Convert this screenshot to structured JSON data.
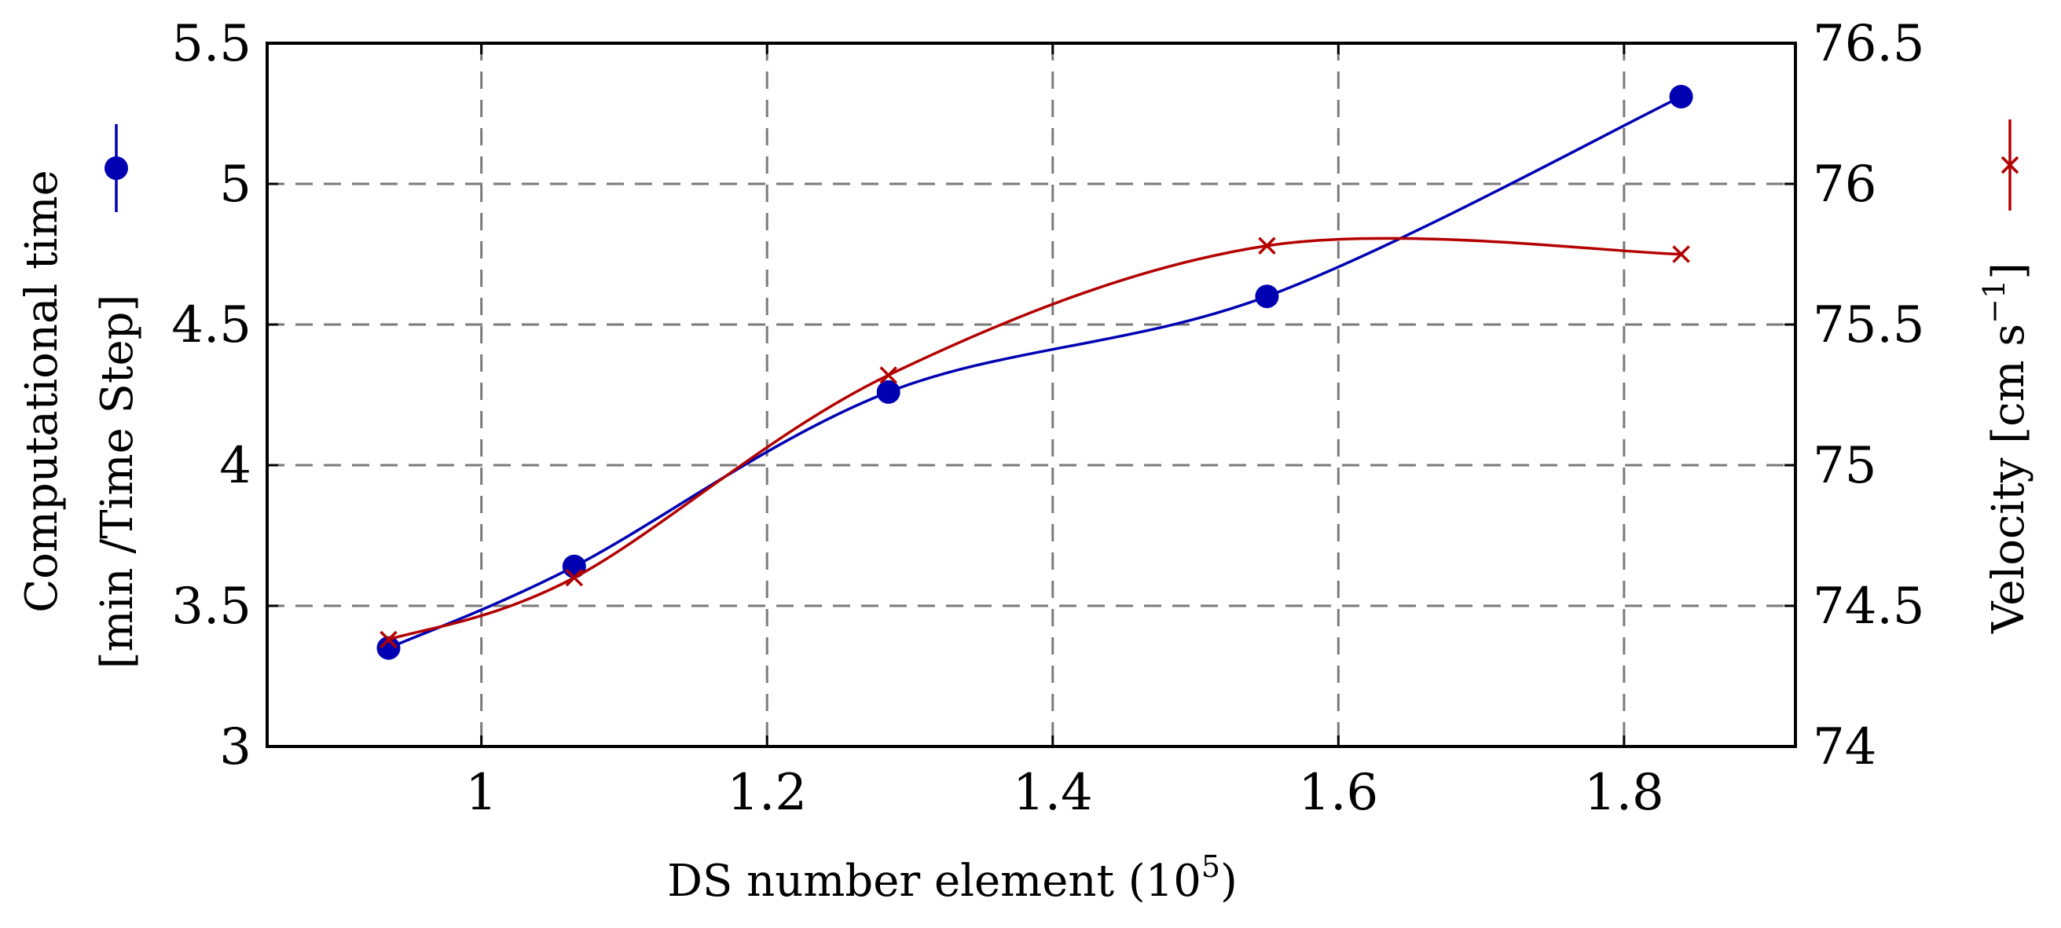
{
  "chart_data": {
    "type": "line",
    "title": "",
    "xlabel": "DS number element (10",
    "xlabel_sup": "5",
    "xlabel_end": ")",
    "xlim": [
      0.85,
      1.92
    ],
    "xticks": [
      1,
      1.2,
      1.4,
      1.6,
      1.8
    ],
    "xtick_labels": [
      "1",
      "1.2",
      "1.4",
      "1.6",
      "1.8"
    ],
    "left_axis": {
      "label_line1": "Computational time",
      "label_line2": "[min /Time Step]",
      "ylim": [
        3,
        5.5
      ],
      "ticks": [
        3,
        3.5,
        4,
        4.5,
        5,
        5.5
      ],
      "tick_labels": [
        "3",
        "3.5",
        "4",
        "4.5",
        "5",
        "5.5"
      ]
    },
    "right_axis": {
      "label": "Velocity [cm s",
      "label_sup": "−1",
      "label_end": "]",
      "ylim": [
        74,
        76.5
      ],
      "ticks": [
        74,
        74.5,
        75,
        75.5,
        76,
        76.5
      ],
      "tick_labels": [
        "74",
        "74.5",
        "75",
        "75.5",
        "76",
        "76.5"
      ]
    },
    "grid": true,
    "series": [
      {
        "axis": "left",
        "marker": "circle",
        "color": "#0000b3",
        "x": [
          0.935,
          1.065,
          1.285,
          1.55,
          1.84
        ],
        "y": [
          3.35,
          3.64,
          4.26,
          4.6,
          5.31
        ]
      },
      {
        "axis": "right",
        "marker": "x",
        "color": "#b30000",
        "x": [
          0.935,
          1.065,
          1.285,
          1.55,
          1.84
        ],
        "y": [
          74.38,
          74.6,
          75.32,
          75.78,
          75.75
        ]
      }
    ]
  }
}
